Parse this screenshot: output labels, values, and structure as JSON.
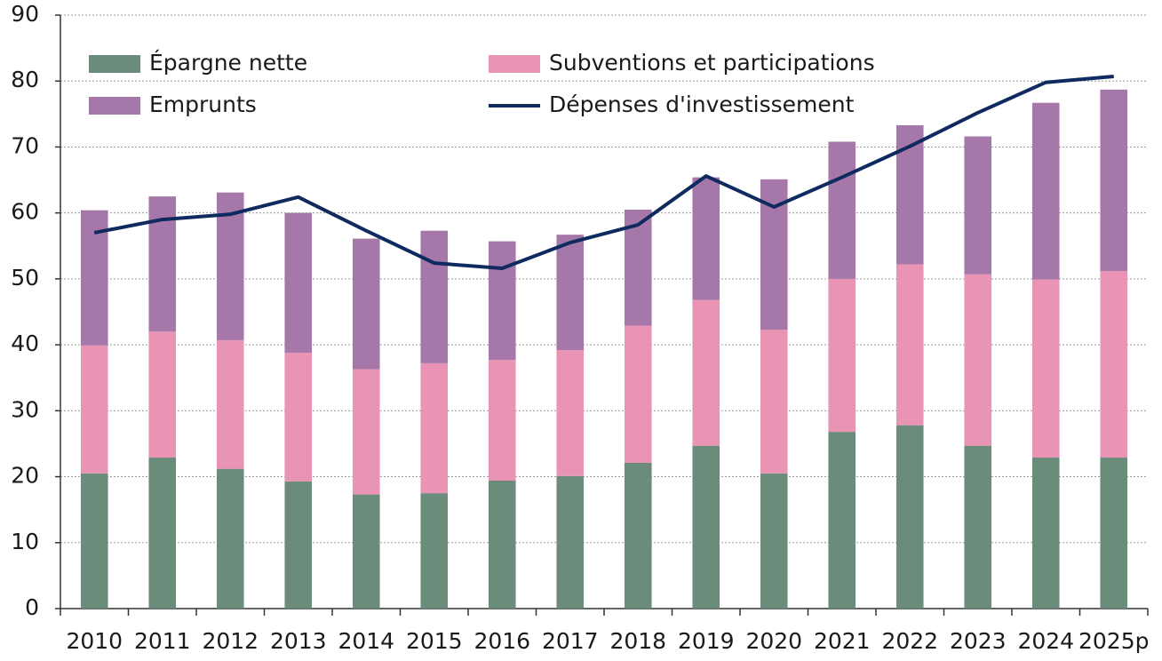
{
  "chart_data": {
    "type": "bar",
    "stacked": true,
    "categories": [
      "2010",
      "2011",
      "2012",
      "2013",
      "2014",
      "2015",
      "2016",
      "2017",
      "2018",
      "2019",
      "2020",
      "2021",
      "2022",
      "2023",
      "2024",
      "2025p"
    ],
    "series": [
      {
        "name": "Épargne nette",
        "color": "#6b8c7a",
        "values": [
          20.5,
          22.9,
          21.2,
          19.3,
          17.3,
          17.5,
          19.4,
          20.1,
          22.1,
          24.7,
          20.5,
          26.8,
          27.8,
          24.7,
          22.9,
          22.9
        ]
      },
      {
        "name": "Subventions et participations",
        "color": "#e993b5",
        "values": [
          19.4,
          19.1,
          19.5,
          19.5,
          19.0,
          19.7,
          18.3,
          19.1,
          20.8,
          22.1,
          21.8,
          23.2,
          24.4,
          26.0,
          27.0,
          28.3
        ]
      },
      {
        "name": "Emprunts",
        "color": "#a678aa",
        "values": [
          20.5,
          20.5,
          22.4,
          21.2,
          19.8,
          20.1,
          18.0,
          17.5,
          17.6,
          18.6,
          22.8,
          20.8,
          21.1,
          20.9,
          26.8,
          27.5
        ]
      },
      {
        "name": "Dépenses d'investissement",
        "type": "line",
        "color": "#0f2a5e",
        "values": [
          57.0,
          59.0,
          59.8,
          62.4,
          57.3,
          52.4,
          51.6,
          55.5,
          58.2,
          65.6,
          60.9,
          65.4,
          70.1,
          75.2,
          79.8,
          80.7
        ]
      }
    ],
    "ylim": [
      0,
      90
    ],
    "yticks": [
      0,
      10,
      20,
      30,
      40,
      50,
      60,
      70,
      80,
      90
    ],
    "grid": true
  }
}
